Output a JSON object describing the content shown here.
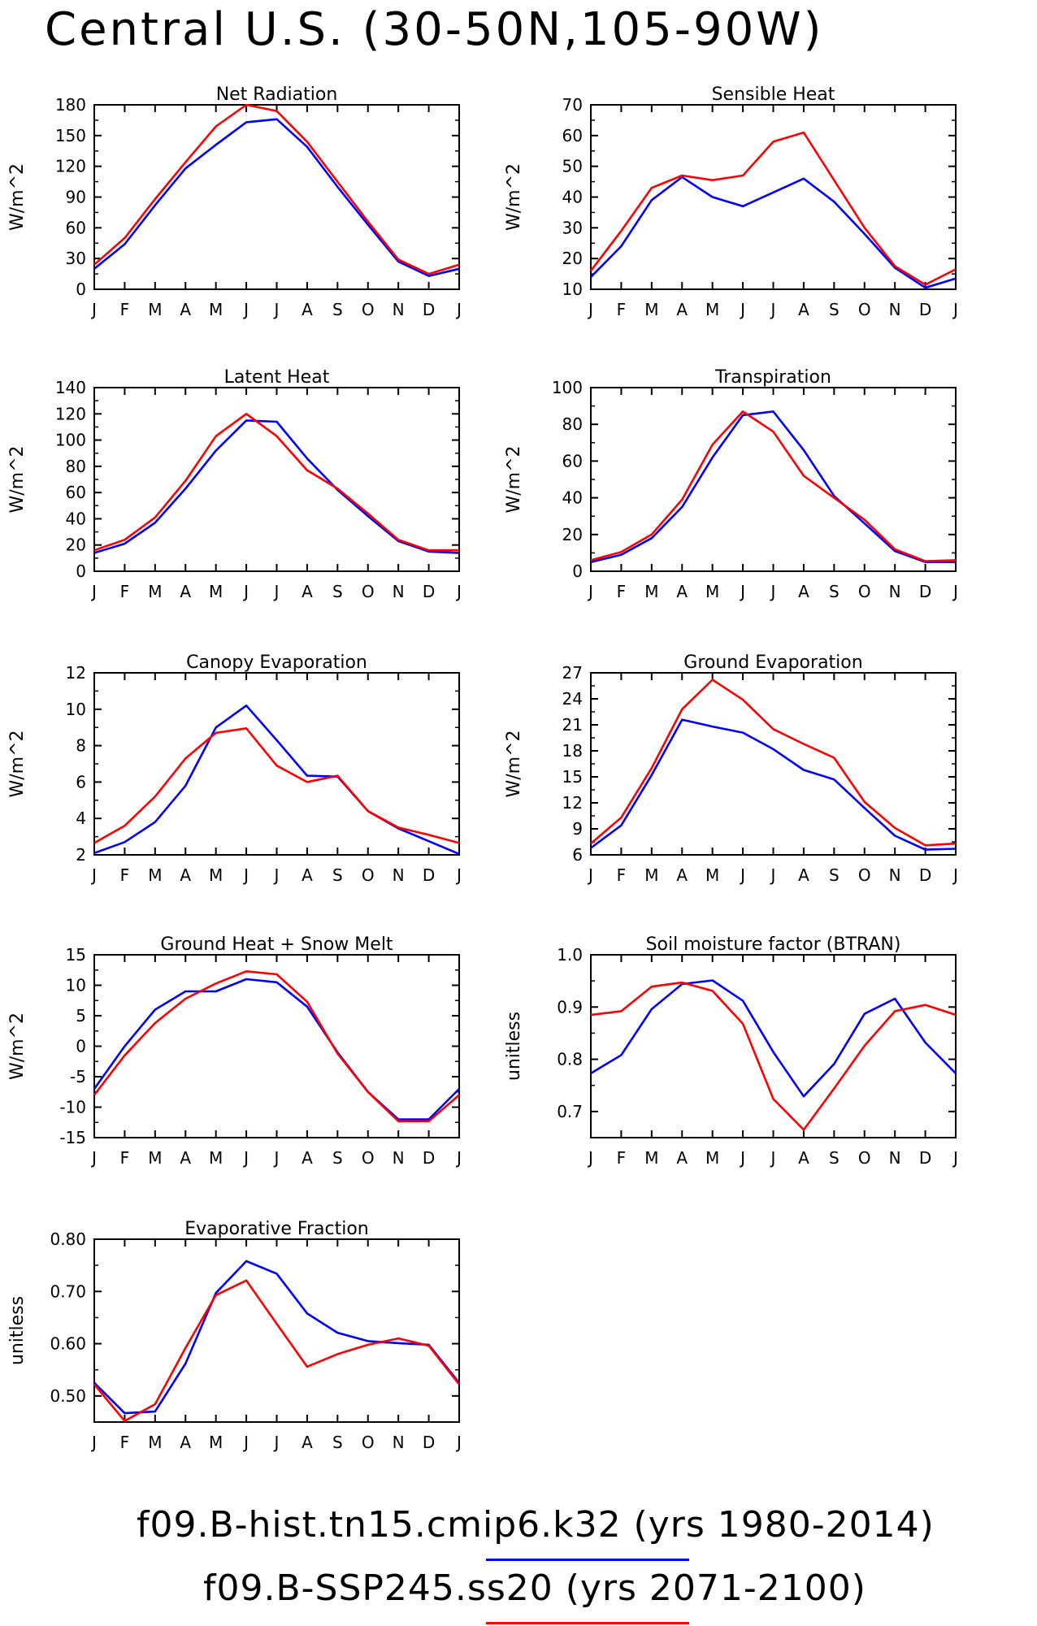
{
  "figure_title": "Central U.S. (30-50N,105-90W)",
  "colors": {
    "run1": "#0000ff",
    "run2": "#ff0000"
  },
  "legend": [
    {
      "label": "f09.B-hist.tn15.cmip6.k32 (yrs 1980-2014)",
      "color": "#0000ff"
    },
    {
      "label": "f09.B-SSP245.ss20 (yrs 2071-2100)",
      "color": "#ff0000"
    }
  ],
  "chart_data": [
    {
      "type": "line",
      "title": "Net Radiation",
      "ylabel": "W/m^2",
      "x": [
        "J",
        "F",
        "M",
        "A",
        "M",
        "J",
        "J",
        "A",
        "S",
        "O",
        "N",
        "D",
        "J"
      ],
      "ylim": [
        0,
        180
      ],
      "yticks": [
        "0",
        "30",
        "60",
        "90",
        "120",
        "150",
        "180"
      ],
      "series": [
        {
          "color": "#0000ff",
          "values": [
            20,
            44,
            82,
            118,
            141,
            163,
            166,
            139,
            100,
            63,
            27,
            13,
            20
          ]
        },
        {
          "color": "#ff0000",
          "values": [
            24,
            50,
            88,
            124,
            159,
            180,
            174,
            144,
            105,
            66,
            29,
            15,
            24
          ]
        }
      ]
    },
    {
      "type": "line",
      "title": "Sensible Heat",
      "ylabel": "W/m^2",
      "x": [
        "J",
        "F",
        "M",
        "A",
        "M",
        "J",
        "J",
        "A",
        "S",
        "O",
        "N",
        "D",
        "J"
      ],
      "ylim": [
        10,
        70
      ],
      "yticks": [
        "10",
        "20",
        "30",
        "40",
        "50",
        "60",
        "70"
      ],
      "series": [
        {
          "color": "#0000ff",
          "values": [
            14,
            24,
            39,
            46.5,
            40,
            37,
            41.5,
            46,
            38.5,
            28,
            17,
            10.5,
            13.5
          ]
        },
        {
          "color": "#ff0000",
          "values": [
            16,
            29,
            43,
            47,
            45.5,
            47,
            58,
            61,
            45.5,
            30,
            17.5,
            11.5,
            16.5
          ]
        }
      ]
    },
    {
      "type": "line",
      "title": "Latent Heat",
      "ylabel": "W/m^2",
      "x": [
        "J",
        "F",
        "M",
        "A",
        "M",
        "J",
        "J",
        "A",
        "S",
        "O",
        "N",
        "D",
        "J"
      ],
      "ylim": [
        0,
        140
      ],
      "yticks": [
        "0",
        "20",
        "40",
        "60",
        "80",
        "100",
        "120",
        "140"
      ],
      "series": [
        {
          "color": "#0000ff",
          "values": [
            14,
            21,
            37,
            63,
            92,
            115,
            114,
            86,
            62,
            42,
            23,
            15,
            14
          ]
        },
        {
          "color": "#ff0000",
          "values": [
            16,
            24,
            41,
            69,
            103,
            120,
            103,
            77,
            63,
            44,
            24,
            16,
            16
          ]
        }
      ]
    },
    {
      "type": "line",
      "title": "Transpiration",
      "ylabel": "W/m^2",
      "x": [
        "J",
        "F",
        "M",
        "A",
        "M",
        "J",
        "J",
        "A",
        "S",
        "O",
        "N",
        "D",
        "J"
      ],
      "ylim": [
        0,
        100
      ],
      "yticks": [
        "0",
        "20",
        "40",
        "60",
        "80",
        "100"
      ],
      "series": [
        {
          "color": "#0000ff",
          "values": [
            5,
            9,
            18,
            35,
            62,
            85,
            87,
            66,
            41,
            26,
            11,
            5,
            5
          ]
        },
        {
          "color": "#ff0000",
          "values": [
            6,
            10.5,
            20,
            39,
            69,
            87,
            76,
            52,
            40,
            28,
            12,
            5.5,
            6
          ]
        }
      ]
    },
    {
      "type": "line",
      "title": "Canopy Evaporation",
      "ylabel": "W/m^2",
      "x": [
        "J",
        "F",
        "M",
        "A",
        "M",
        "J",
        "J",
        "A",
        "S",
        "O",
        "N",
        "D",
        "J"
      ],
      "ylim": [
        2,
        12
      ],
      "yticks": [
        "2",
        "4",
        "6",
        "8",
        "10",
        "12"
      ],
      "series": [
        {
          "color": "#0000ff",
          "values": [
            2.1,
            2.7,
            3.8,
            5.8,
            9.0,
            10.2,
            8.3,
            6.35,
            6.3,
            4.4,
            3.45,
            2.75,
            2.05
          ]
        },
        {
          "color": "#ff0000",
          "values": [
            2.65,
            3.6,
            5.2,
            7.3,
            8.7,
            8.95,
            6.9,
            6.0,
            6.35,
            4.4,
            3.5,
            3.1,
            2.65
          ]
        }
      ]
    },
    {
      "type": "line",
      "title": "Ground Evaporation",
      "ylabel": "W/m^2",
      "x": [
        "J",
        "F",
        "M",
        "A",
        "M",
        "J",
        "J",
        "A",
        "S",
        "O",
        "N",
        "D",
        "J"
      ],
      "ylim": [
        6,
        27
      ],
      "yticks": [
        "6",
        "9",
        "12",
        "15",
        "18",
        "21",
        "24",
        "27"
      ],
      "series": [
        {
          "color": "#0000ff",
          "values": [
            6.8,
            9.4,
            15.2,
            21.6,
            20.8,
            20.1,
            18.2,
            15.8,
            14.7,
            11.4,
            8.2,
            6.6,
            6.7
          ]
        },
        {
          "color": "#ff0000",
          "values": [
            7.3,
            10.3,
            16.0,
            22.8,
            26.2,
            23.9,
            20.5,
            18.8,
            17.2,
            12.1,
            9.1,
            7.1,
            7.3
          ]
        }
      ]
    },
    {
      "type": "line",
      "title": "Ground Heat + Snow Melt",
      "ylabel": "W/m^2",
      "x": [
        "J",
        "F",
        "M",
        "A",
        "M",
        "J",
        "J",
        "A",
        "S",
        "O",
        "N",
        "D",
        "J"
      ],
      "ylim": [
        -15,
        15
      ],
      "yticks": [
        "-15",
        "-10",
        "-5",
        "0",
        "5",
        "10",
        "15"
      ],
      "series": [
        {
          "color": "#0000ff",
          "values": [
            -7,
            0,
            6,
            9,
            9,
            11,
            10.5,
            6.5,
            -1,
            -7.5,
            -12,
            -12,
            -7
          ]
        },
        {
          "color": "#ff0000",
          "values": [
            -8,
            -1.5,
            3.8,
            7.8,
            10.3,
            12.3,
            11.8,
            7.3,
            -1.2,
            -7.5,
            -12.3,
            -12.3,
            -8
          ]
        }
      ]
    },
    {
      "type": "line",
      "title": "Soil moisture factor (BTRAN)",
      "ylabel": "unitless",
      "x": [
        "J",
        "F",
        "M",
        "A",
        "M",
        "J",
        "J",
        "A",
        "S",
        "O",
        "N",
        "D",
        "J"
      ],
      "ylim": [
        0.65,
        1.0
      ],
      "yticks": [
        "0.7",
        "0.8",
        "0.9",
        "1.0"
      ],
      "ytick_values": [
        0.7,
        0.8,
        0.9,
        1.0
      ],
      "series": [
        {
          "color": "#0000ff",
          "values": [
            0.773,
            0.808,
            0.896,
            0.944,
            0.951,
            0.912,
            0.814,
            0.729,
            0.791,
            0.887,
            0.916,
            0.832,
            0.773
          ]
        },
        {
          "color": "#ff0000",
          "values": [
            0.885,
            0.892,
            0.939,
            0.947,
            0.931,
            0.868,
            0.724,
            0.665,
            0.744,
            0.826,
            0.892,
            0.904,
            0.885
          ]
        }
      ]
    },
    {
      "type": "line",
      "title": "Evaporative Fraction",
      "ylabel": "unitless",
      "x": [
        "J",
        "F",
        "M",
        "A",
        "M",
        "J",
        "J",
        "A",
        "S",
        "O",
        "N",
        "D",
        "J"
      ],
      "ylim": [
        0.45,
        0.8
      ],
      "yticks": [
        "0.50",
        "0.60",
        "0.70",
        "0.80"
      ],
      "ytick_values": [
        0.5,
        0.6,
        0.7,
        0.8
      ],
      "series": [
        {
          "color": "#0000ff",
          "values": [
            0.525,
            0.467,
            0.47,
            0.562,
            0.697,
            0.758,
            0.734,
            0.658,
            0.621,
            0.605,
            0.601,
            0.598,
            0.525
          ]
        },
        {
          "color": "#ff0000",
          "values": [
            0.522,
            0.452,
            0.484,
            0.592,
            0.693,
            0.721,
            0.638,
            0.556,
            0.58,
            0.598,
            0.61,
            0.596,
            0.522
          ]
        }
      ]
    }
  ]
}
